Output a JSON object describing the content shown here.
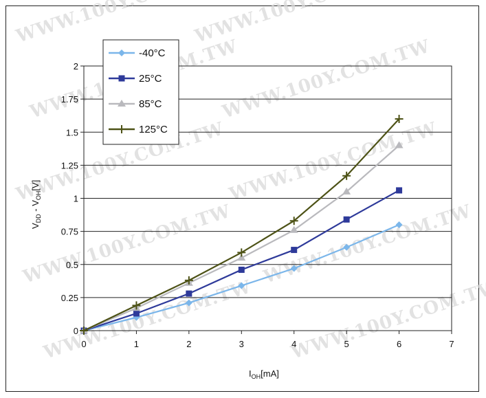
{
  "watermark": "WWW.100Y.COM.TW",
  "chart_data": {
    "type": "line",
    "x": [
      0,
      1,
      2,
      3,
      4,
      5,
      6
    ],
    "xlim": [
      0,
      7
    ],
    "ylim": [
      0,
      2
    ],
    "x_ticks": [
      "0",
      "1",
      "2",
      "3",
      "4",
      "5",
      "6",
      "7"
    ],
    "y_ticks": [
      "0",
      "0.25",
      "0.5",
      "0.75",
      "1",
      "1.25",
      "1.5",
      "1.75",
      "2"
    ],
    "xlabel": "I",
    "xlabel_sub": "OH",
    "xlabel_unit": "[mA]",
    "ylabel": "V",
    "ylabel_sub1": "DD",
    "ylabel_mid": " - V",
    "ylabel_sub2": "OH",
    "ylabel_unit": "[V]",
    "grid": "horizontal",
    "legend_position": "top-left",
    "series": [
      {
        "name": "-40°C",
        "color": "#7bb6ea",
        "marker": "diamond",
        "values": [
          0,
          0.1,
          0.21,
          0.34,
          0.47,
          0.63,
          0.8
        ]
      },
      {
        "name": "25°C",
        "color": "#2e3a9a",
        "marker": "square",
        "values": [
          0,
          0.13,
          0.28,
          0.46,
          0.61,
          0.84,
          1.06
        ]
      },
      {
        "name": "85°C",
        "color": "#b9b9bd",
        "marker": "triangle",
        "values": [
          0,
          0.17,
          0.36,
          0.55,
          0.76,
          1.05,
          1.4
        ]
      },
      {
        "name": "125°C",
        "color": "#4d5216",
        "marker": "plus",
        "values": [
          0,
          0.19,
          0.38,
          0.59,
          0.83,
          1.17,
          1.6
        ]
      }
    ]
  }
}
